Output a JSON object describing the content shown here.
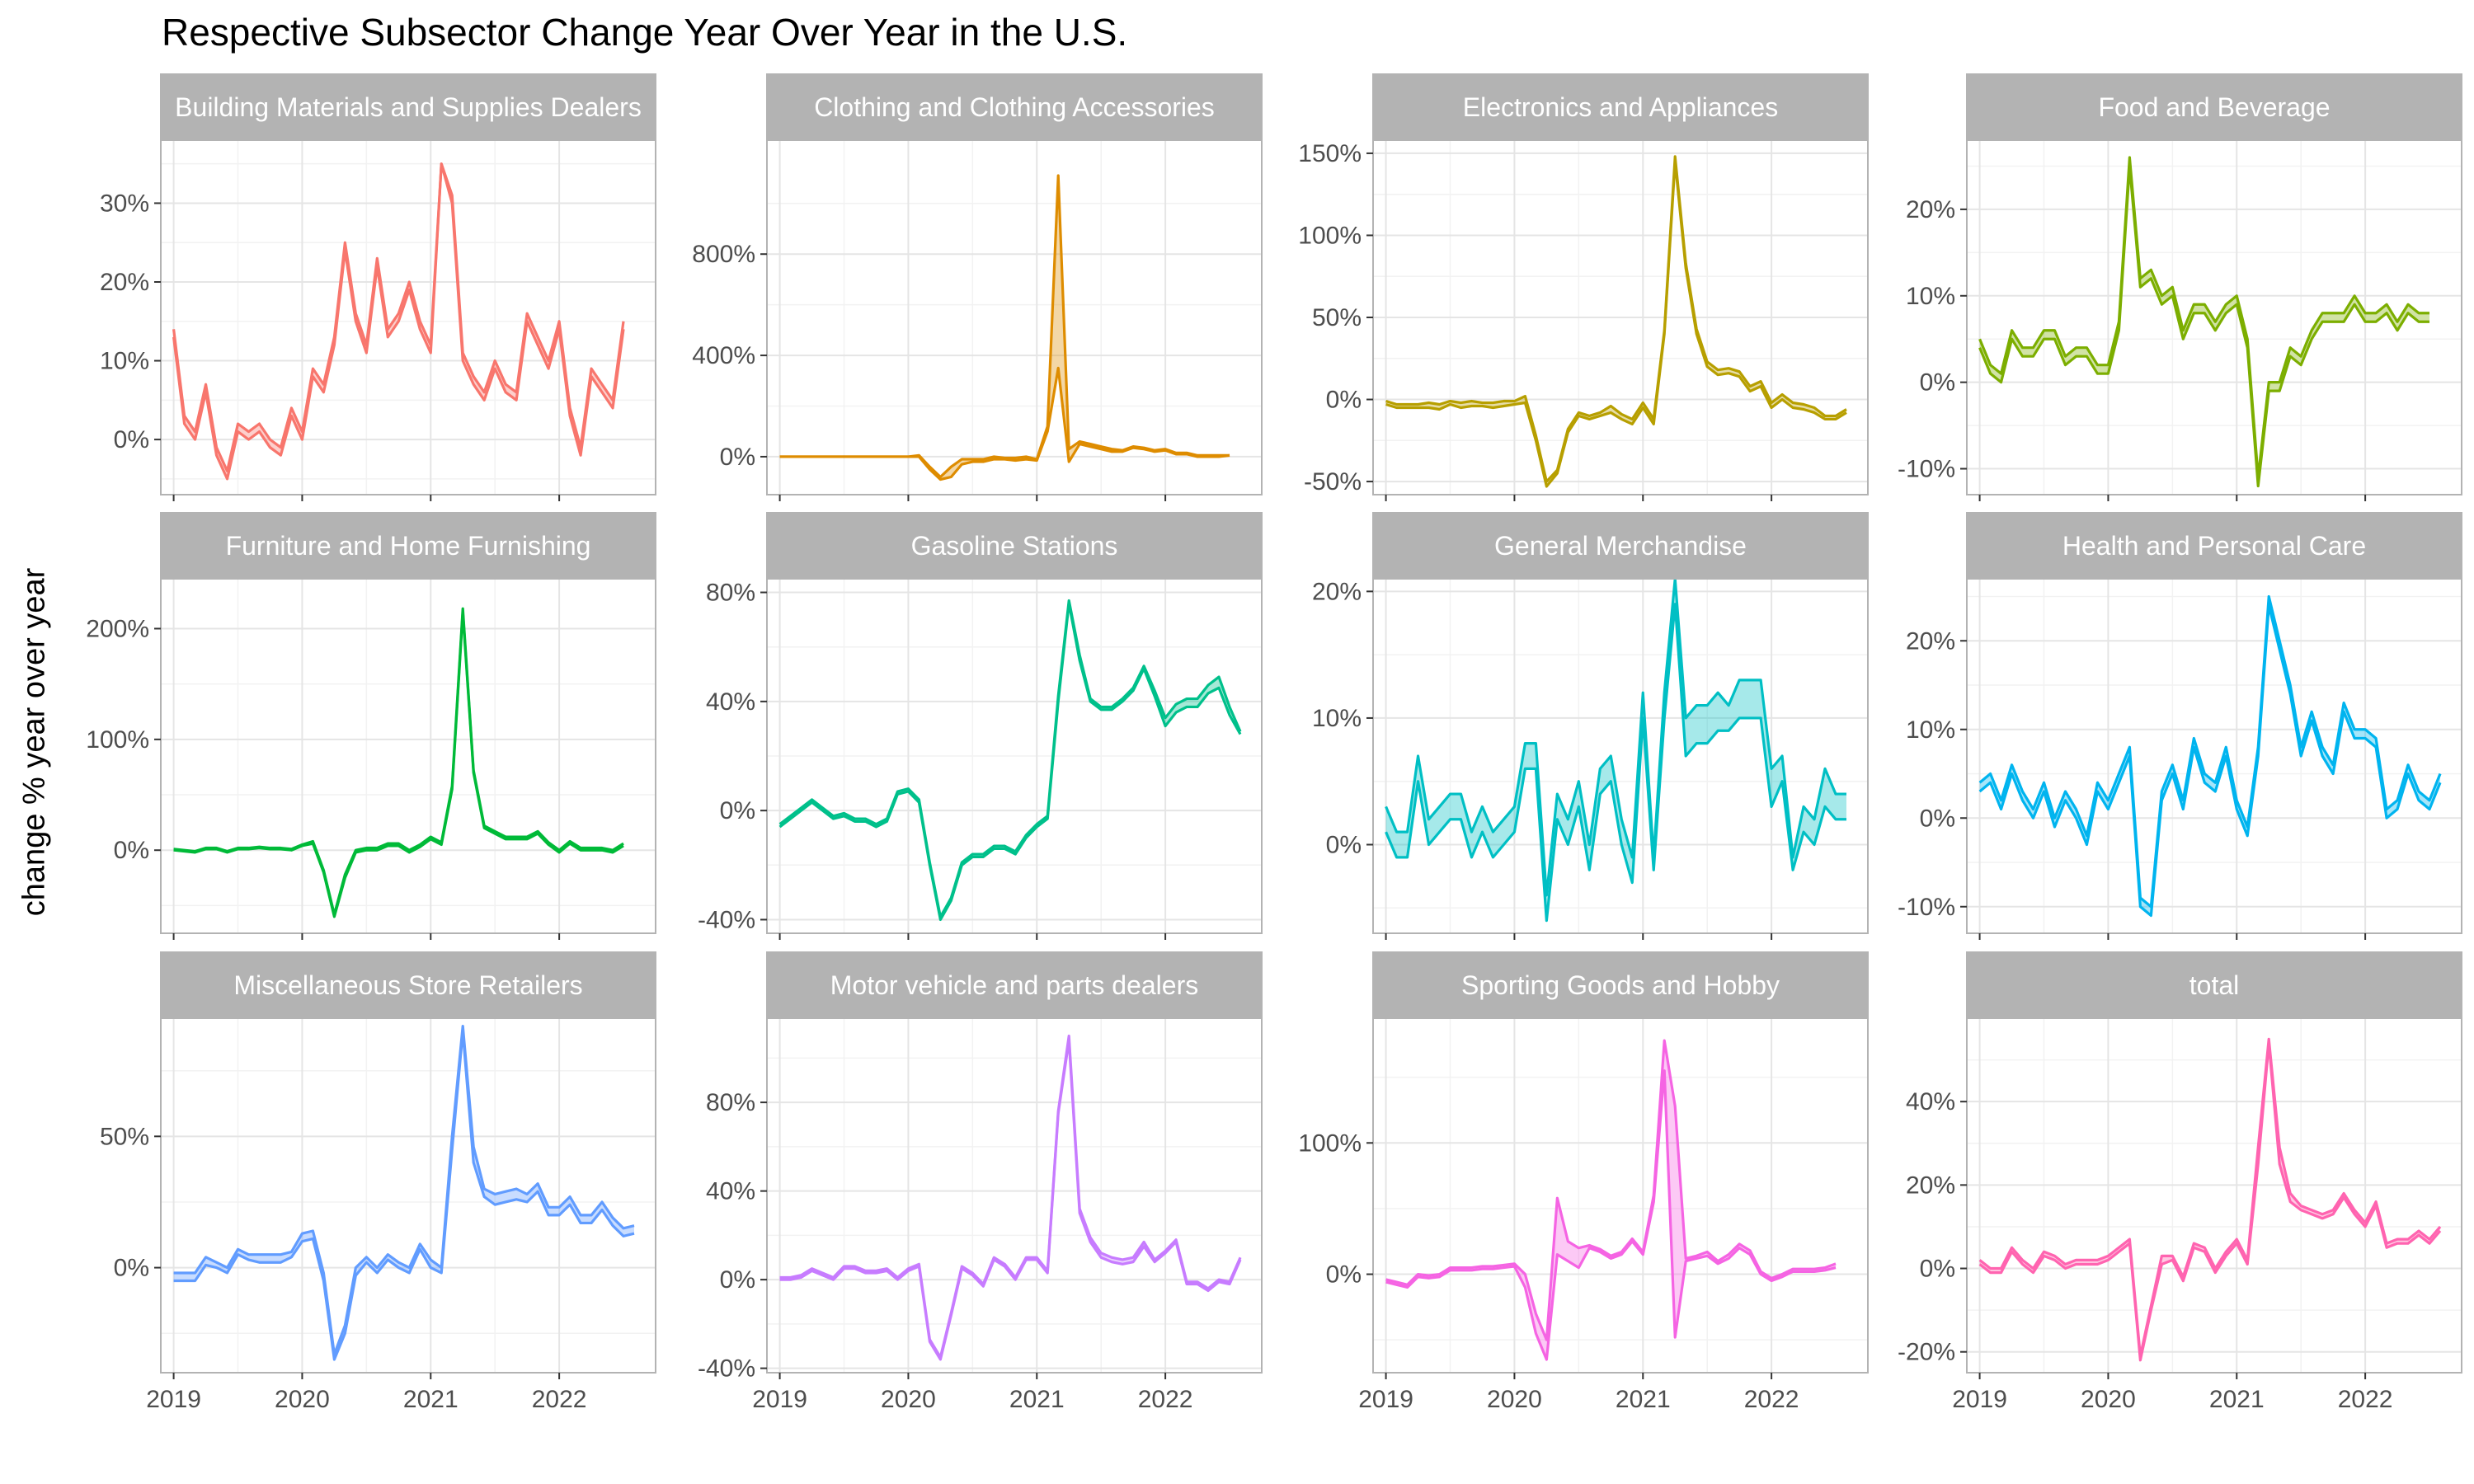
{
  "title": "Respective Subsector Change Year Over Year in the U.S.",
  "ylabel": "change % year over year",
  "colors": {
    "strip_bg": "#b3b3b3",
    "panel_border": "#b3b3b3",
    "grid_major": "#e5e5e5",
    "grid_minor": "#f2f2f2",
    "tick_text": "#4d4d4d"
  },
  "chart_data": [
    {
      "type": "line",
      "facet": "Building Materials and Supplies Dealers",
      "color": "#F8766D",
      "x_range": [
        2018.9,
        2022.75
      ],
      "x_ticks": [
        2019,
        2020,
        2021,
        2022
      ],
      "x_tick_labels": [],
      "ylim": [
        -7,
        38
      ],
      "y_ticks": [
        0,
        10,
        20,
        30
      ],
      "y_tick_labels": [
        "0%",
        "10%",
        "20%",
        "30%"
      ],
      "x_start": 2019.0,
      "x_step": 0.08333,
      "lower": [
        13,
        2,
        0,
        6,
        -2,
        -5,
        1,
        0,
        1,
        -1,
        -2,
        3,
        0,
        8,
        6,
        12,
        24,
        15,
        11,
        22,
        13,
        15,
        19,
        14,
        11,
        35,
        30,
        10,
        7,
        5,
        9,
        6,
        5,
        15,
        12,
        9,
        14,
        3,
        -2,
        8,
        6,
        4,
        14
      ],
      "upper": [
        14,
        3,
        1,
        7,
        -1,
        -4,
        2,
        1,
        2,
        0,
        -1,
        4,
        1,
        9,
        7,
        13,
        25,
        16,
        12,
        23,
        14,
        16,
        20,
        15,
        12,
        35,
        31,
        11,
        8,
        6,
        10,
        7,
        6,
        16,
        13,
        10,
        15,
        4,
        -1,
        9,
        7,
        5,
        15
      ]
    },
    {
      "type": "line",
      "facet": "Clothing and Clothing Accessories",
      "color": "#DE8C00",
      "x_range": [
        2018.9,
        2022.75
      ],
      "x_ticks": [
        2019,
        2020,
        2021,
        2022
      ],
      "x_tick_labels": [],
      "ylim": [
        -150,
        1250
      ],
      "y_ticks": [
        0,
        400,
        800
      ],
      "y_tick_labels": [
        "0%",
        "400%",
        "800%"
      ],
      "x_start": 2019.0,
      "x_step": 0.08333,
      "lower": [
        0,
        0,
        0,
        0,
        0,
        0,
        0,
        0,
        0,
        0,
        0,
        0,
        0,
        0,
        -50,
        -90,
        -80,
        -30,
        -20,
        -20,
        -10,
        -10,
        -15,
        -10,
        -15,
        100,
        350,
        -20,
        50,
        40,
        30,
        20,
        20,
        35,
        30,
        20,
        25,
        10,
        10,
        0,
        0,
        0,
        5
      ],
      "upper": [
        0,
        0,
        0,
        0,
        0,
        0,
        0,
        0,
        0,
        0,
        0,
        0,
        0,
        5,
        -40,
        -80,
        -40,
        -10,
        -10,
        -10,
        0,
        -5,
        -5,
        0,
        -10,
        120,
        1110,
        30,
        60,
        50,
        40,
        30,
        25,
        40,
        35,
        25,
        30,
        15,
        15,
        5,
        5,
        5,
        5
      ]
    },
    {
      "type": "line",
      "facet": "Electronics and Appliances",
      "color": "#B79F00",
      "x_range": [
        2018.9,
        2022.75
      ],
      "x_ticks": [
        2019,
        2020,
        2021,
        2022
      ],
      "x_tick_labels": [],
      "ylim": [
        -58,
        158
      ],
      "y_ticks": [
        -50,
        0,
        50,
        100,
        150
      ],
      "y_tick_labels": [
        "-50%",
        "0%",
        "50%",
        "100%",
        "150%"
      ],
      "x_start": 2019.0,
      "x_step": 0.08333,
      "lower": [
        -3,
        -5,
        -5,
        -5,
        -5,
        -6,
        -3,
        -5,
        -4,
        -4,
        -5,
        -4,
        -3,
        -2,
        -25,
        -53,
        -45,
        -20,
        -10,
        -12,
        -10,
        -8,
        -12,
        -15,
        -5,
        -15,
        40,
        145,
        80,
        40,
        20,
        15,
        16,
        14,
        5,
        8,
        -5,
        0,
        -5,
        -6,
        -8,
        -12,
        -12,
        -8
      ],
      "upper": [
        -1,
        -3,
        -3,
        -3,
        -2,
        -3,
        -1,
        -2,
        -1,
        -2,
        -2,
        -1,
        -1,
        2,
        -22,
        -50,
        -43,
        -18,
        -8,
        -10,
        -8,
        -4,
        -9,
        -12,
        -2,
        -12,
        42,
        148,
        83,
        43,
        23,
        18,
        19,
        17,
        8,
        11,
        -2,
        3,
        -2,
        -3,
        -5,
        -10,
        -10,
        -6
      ]
    },
    {
      "type": "line",
      "facet": "Food and Beverage",
      "color": "#7CAE00",
      "x_range": [
        2018.9,
        2022.75
      ],
      "x_ticks": [
        2019,
        2020,
        2021,
        2022
      ],
      "x_tick_labels": [],
      "ylim": [
        -13,
        28
      ],
      "y_ticks": [
        -10,
        0,
        10,
        20
      ],
      "y_tick_labels": [
        "-10%",
        "0%",
        "10%",
        "20%"
      ],
      "x_start": 2019.0,
      "x_step": 0.08333,
      "lower": [
        4,
        1,
        0,
        5,
        3,
        3,
        5,
        5,
        2,
        3,
        3,
        1,
        1,
        6,
        25,
        11,
        12,
        9,
        10,
        5,
        8,
        8,
        6,
        8,
        9,
        4,
        -12,
        -1,
        -1,
        3,
        2,
        5,
        7,
        7,
        7,
        9,
        7,
        7,
        8,
        6,
        8,
        7,
        7
      ],
      "upper": [
        5,
        2,
        1,
        6,
        4,
        4,
        6,
        6,
        3,
        4,
        4,
        2,
        2,
        7,
        26,
        12,
        13,
        10,
        11,
        6,
        9,
        9,
        7,
        9,
        10,
        5,
        -11,
        0,
        0,
        4,
        3,
        6,
        8,
        8,
        8,
        10,
        8,
        8,
        9,
        7,
        9,
        8,
        8
      ]
    },
    {
      "type": "line",
      "facet": "Furniture and Home Furnishing",
      "color": "#00BA38",
      "x_range": [
        2018.9,
        2022.75
      ],
      "x_ticks": [
        2019,
        2020,
        2021,
        2022
      ],
      "x_tick_labels": [],
      "ylim": [
        -75,
        245
      ],
      "y_ticks": [
        0,
        100,
        200
      ],
      "y_tick_labels": [
        "0%",
        "100%",
        "200%"
      ],
      "x_start": 2019.0,
      "x_step": 0.08333,
      "lower": [
        0,
        -1,
        -2,
        1,
        1,
        -2,
        1,
        1,
        2,
        1,
        1,
        0,
        4,
        6,
        -20,
        -60,
        -25,
        -2,
        0,
        0,
        4,
        4,
        -2,
        3,
        10,
        5,
        55,
        215,
        70,
        20,
        15,
        10,
        10,
        10,
        15,
        5,
        -2,
        6,
        0,
        0,
        0,
        -2,
        4
      ],
      "upper": [
        1,
        0,
        -1,
        2,
        2,
        -1,
        2,
        2,
        3,
        2,
        2,
        1,
        5,
        8,
        -18,
        -58,
        -22,
        0,
        2,
        2,
        6,
        6,
        0,
        5,
        12,
        7,
        58,
        218,
        72,
        22,
        17,
        12,
        12,
        12,
        17,
        7,
        0,
        8,
        2,
        2,
        2,
        0,
        6
      ]
    },
    {
      "type": "line",
      "facet": "Gasoline Stations",
      "color": "#00C08B",
      "x_range": [
        2018.9,
        2022.75
      ],
      "x_ticks": [
        2019,
        2020,
        2021,
        2022
      ],
      "x_tick_labels": [],
      "ylim": [
        -45,
        85
      ],
      "y_ticks": [
        -40,
        0,
        40,
        80
      ],
      "y_tick_labels": [
        "-40%",
        "0%",
        "40%",
        "80%"
      ],
      "x_start": 2019.0,
      "x_step": 0.08333,
      "lower": [
        -6,
        -3,
        0,
        3,
        0,
        -3,
        -2,
        -4,
        -4,
        -6,
        -4,
        6,
        7,
        3,
        -20,
        -40,
        -33,
        -20,
        -17,
        -17,
        -14,
        -14,
        -16,
        -10,
        -6,
        -3,
        40,
        76,
        55,
        40,
        37,
        37,
        40,
        44,
        52,
        42,
        31,
        36,
        38,
        38,
        43,
        45,
        35,
        28
      ],
      "upper": [
        -5,
        -2,
        1,
        4,
        1,
        -2,
        -1,
        -3,
        -3,
        -5,
        -3,
        7,
        8,
        4,
        -19,
        -39,
        -32,
        -19,
        -16,
        -16,
        -13,
        -13,
        -15,
        -9,
        -5,
        -2,
        42,
        77,
        57,
        41,
        38,
        38,
        41,
        45,
        53,
        44,
        34,
        39,
        41,
        41,
        46,
        49,
        38,
        29
      ]
    },
    {
      "type": "line",
      "facet": "General Merchandise",
      "color": "#00BFC4",
      "x_range": [
        2018.9,
        2022.75
      ],
      "x_ticks": [
        2019,
        2020,
        2021,
        2022
      ],
      "x_tick_labels": [],
      "ylim": [
        -7,
        21
      ],
      "y_ticks": [
        0,
        10,
        20
      ],
      "y_tick_labels": [
        "0%",
        "10%",
        "20%"
      ],
      "x_start": 2019.0,
      "x_step": 0.08333,
      "lower": [
        1,
        -1,
        -1,
        5,
        0,
        1,
        2,
        2,
        -1,
        1,
        -1,
        0,
        1,
        6,
        6,
        -6,
        2,
        0,
        3,
        -2,
        4,
        5,
        0,
        -3,
        10,
        -2,
        10,
        19,
        7,
        8,
        8,
        9,
        9,
        10,
        10,
        10,
        3,
        5,
        -2,
        1,
        0,
        3,
        2,
        2
      ],
      "upper": [
        3,
        1,
        1,
        7,
        2,
        3,
        4,
        4,
        1,
        3,
        1,
        2,
        3,
        8,
        8,
        -4,
        4,
        2,
        5,
        0,
        6,
        7,
        2,
        -1,
        12,
        -1,
        12,
        21,
        10,
        11,
        11,
        12,
        11,
        13,
        13,
        13,
        6,
        7,
        -1,
        3,
        2,
        6,
        4,
        4
      ]
    },
    {
      "type": "line",
      "facet": "Health and Personal Care",
      "color": "#00B4EF",
      "x_range": [
        2018.9,
        2022.75
      ],
      "x_ticks": [
        2019,
        2020,
        2021,
        2022
      ],
      "x_tick_labels": [],
      "ylim": [
        -13,
        27
      ],
      "y_ticks": [
        -10,
        0,
        10,
        20
      ],
      "y_tick_labels": [
        "-10%",
        "0%",
        "10%",
        "20%"
      ],
      "x_start": 2019.0,
      "x_step": 0.08333,
      "lower": [
        3,
        4,
        1,
        5,
        2,
        0,
        3,
        -1,
        2,
        0,
        -3,
        3,
        1,
        4,
        7,
        -10,
        -11,
        2,
        5,
        1,
        8,
        4,
        3,
        7,
        1,
        -2,
        7,
        24,
        19,
        14,
        7,
        11,
        7,
        5,
        12,
        9,
        9,
        8,
        0,
        1,
        5,
        2,
        1,
        4
      ],
      "upper": [
        4,
        5,
        2,
        6,
        3,
        1,
        4,
        0,
        3,
        1,
        -2,
        4,
        2,
        5,
        8,
        -9,
        -10,
        3,
        6,
        2,
        9,
        5,
        4,
        8,
        2,
        -1,
        8,
        25,
        20,
        15,
        8,
        12,
        8,
        6,
        13,
        10,
        10,
        9,
        1,
        2,
        6,
        3,
        2,
        5
      ]
    },
    {
      "type": "line",
      "facet": "Miscellaneous Store Retailers",
      "color": "#619CFF",
      "x_range": [
        2018.9,
        2022.75
      ],
      "x_ticks": [
        2019,
        2020,
        2021,
        2022
      ],
      "x_tick_labels": [
        "2019",
        "2020",
        "2021",
        "2022"
      ],
      "ylim": [
        -40,
        95
      ],
      "y_ticks": [
        0,
        50
      ],
      "y_tick_labels": [
        "0%",
        "50%"
      ],
      "x_start": 2019.0,
      "x_step": 0.08333,
      "lower": [
        -5,
        -5,
        -5,
        1,
        0,
        -2,
        5,
        3,
        2,
        2,
        2,
        4,
        10,
        11,
        -5,
        -35,
        -25,
        -3,
        2,
        -2,
        3,
        0,
        -2,
        7,
        0,
        -2,
        45,
        90,
        40,
        27,
        24,
        25,
        26,
        25,
        29,
        20,
        20,
        24,
        17,
        17,
        22,
        16,
        12,
        13
      ],
      "upper": [
        -2,
        -2,
        -2,
        4,
        2,
        0,
        7,
        5,
        5,
        5,
        5,
        6,
        13,
        14,
        -2,
        -33,
        -22,
        0,
        4,
        0,
        5,
        2,
        0,
        9,
        3,
        0,
        50,
        92,
        46,
        30,
        28,
        29,
        30,
        28,
        32,
        23,
        23,
        27,
        20,
        20,
        25,
        19,
        15,
        16
      ]
    },
    {
      "type": "line",
      "facet": "Motor vehicle and parts dealers",
      "color": "#C77CFF",
      "x_range": [
        2018.9,
        2022.75
      ],
      "x_ticks": [
        2019,
        2020,
        2021,
        2022
      ],
      "x_tick_labels": [
        "2019",
        "2020",
        "2021",
        "2022"
      ],
      "ylim": [
        -42,
        118
      ],
      "y_ticks": [
        -40,
        0,
        40,
        80
      ],
      "y_tick_labels": [
        "-40%",
        "0%",
        "40%",
        "80%"
      ],
      "x_start": 2019.0,
      "x_step": 0.08333,
      "lower": [
        0,
        0,
        1,
        4,
        2,
        0,
        5,
        5,
        3,
        3,
        4,
        0,
        4,
        6,
        -28,
        -36,
        -16,
        5,
        2,
        -3,
        9,
        6,
        0,
        9,
        9,
        3,
        75,
        108,
        30,
        17,
        10,
        8,
        7,
        8,
        15,
        8,
        12,
        17,
        -2,
        -2,
        -5,
        -1,
        -2,
        9
      ],
      "upper": [
        1,
        1,
        2,
        5,
        3,
        1,
        6,
        6,
        4,
        4,
        5,
        1,
        5,
        7,
        -27,
        -35,
        -15,
        6,
        3,
        -2,
        10,
        7,
        1,
        10,
        10,
        4,
        76,
        110,
        32,
        19,
        12,
        10,
        9,
        10,
        17,
        9,
        13,
        18,
        -1,
        -1,
        -4,
        0,
        -1,
        10
      ]
    },
    {
      "type": "line",
      "facet": "Sporting Goods and Hobby",
      "color": "#F564E3",
      "x_range": [
        2018.9,
        2022.75
      ],
      "x_ticks": [
        2019,
        2020,
        2021,
        2022
      ],
      "x_tick_labels": [
        "2019",
        "2020",
        "2021",
        "2022"
      ],
      "ylim": [
        -75,
        195
      ],
      "y_ticks": [
        0,
        100
      ],
      "y_tick_labels": [
        "0%",
        "100%"
      ],
      "x_start": 2019.0,
      "x_step": 0.08333,
      "lower": [
        -6,
        -8,
        -10,
        -2,
        -3,
        -2,
        3,
        3,
        3,
        4,
        4,
        5,
        6,
        -10,
        -45,
        -65,
        15,
        10,
        5,
        20,
        17,
        12,
        15,
        25,
        15,
        55,
        155,
        -48,
        10,
        12,
        14,
        8,
        12,
        20,
        15,
        0,
        -5,
        -2,
        2,
        2,
        2,
        3,
        5
      ],
      "upper": [
        -4,
        -6,
        -8,
        0,
        -1,
        0,
        5,
        5,
        5,
        6,
        6,
        7,
        8,
        0,
        -30,
        -50,
        58,
        25,
        20,
        22,
        19,
        14,
        17,
        27,
        17,
        60,
        178,
        128,
        12,
        14,
        17,
        10,
        15,
        23,
        18,
        2,
        -3,
        0,
        4,
        4,
        4,
        5,
        8
      ]
    },
    {
      "type": "line",
      "facet": "total",
      "color": "#FF64B0",
      "x_range": [
        2018.9,
        2022.75
      ],
      "x_ticks": [
        2019,
        2020,
        2021,
        2022
      ],
      "x_tick_labels": [
        "2019",
        "2020",
        "2021",
        "2022"
      ],
      "ylim": [
        -25,
        60
      ],
      "y_ticks": [
        -20,
        0,
        20,
        40
      ],
      "y_tick_labels": [
        "-20%",
        "0%",
        "20%",
        "40%"
      ],
      "x_start": 2019.0,
      "x_step": 0.08333,
      "lower": [
        1,
        -1,
        -1,
        4,
        1,
        -1,
        3,
        2,
        0,
        1,
        1,
        1,
        2,
        4,
        6,
        -22,
        -10,
        1,
        2,
        -3,
        5,
        4,
        -1,
        3,
        6,
        1,
        25,
        54,
        25,
        16,
        14,
        13,
        12,
        13,
        17,
        13,
        10,
        15,
        5,
        6,
        6,
        8,
        6,
        9
      ],
      "upper": [
        2,
        0,
        0,
        5,
        2,
        0,
        4,
        3,
        1,
        2,
        2,
        2,
        3,
        5,
        7,
        -21,
        -9,
        3,
        3,
        -2,
        6,
        5,
        0,
        4,
        7,
        2,
        29,
        55,
        29,
        18,
        15,
        14,
        13,
        14,
        18,
        14,
        11,
        16,
        6,
        7,
        7,
        9,
        7,
        10
      ]
    }
  ]
}
